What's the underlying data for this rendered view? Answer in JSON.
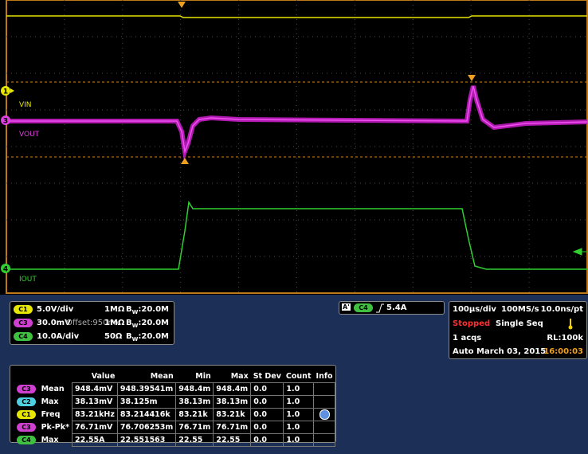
{
  "waveforms": {
    "vin": {
      "marker": "1",
      "label": "VIN"
    },
    "vout": {
      "marker": "3",
      "label": "VOUT"
    },
    "iout": {
      "marker": "4",
      "label": "IOUT"
    }
  },
  "bandwidth_symbol": {
    "main": "B",
    "sub": "W"
  },
  "channels": [
    {
      "badge": "C1",
      "scale": "5.0V/div",
      "offset": null,
      "impedance": "1MΩ",
      "bandwidth": ":20.0M"
    },
    {
      "badge": "C3",
      "scale": "30.0mV",
      "offset": "Offset:950mV",
      "impedance": "1MΩ",
      "bandwidth": ":20.0M"
    },
    {
      "badge": "C4",
      "scale": "10.0A/div",
      "offset": null,
      "impedance": "50Ω",
      "bandwidth": ":20.0M"
    }
  ],
  "trigger": {
    "ref": "A'",
    "channel": "C4",
    "level": "5.4A"
  },
  "timebase": {
    "scale": "100µs/div",
    "sample_rate": "100MS/s",
    "resolution": "10.0ns/pt",
    "status": "Stopped",
    "mode": "Single Seq",
    "acqs": "1 acqs",
    "record_length": "RL:100k",
    "trigger_mode": "Auto",
    "date": "March 03, 2015",
    "time": "16:00:03"
  },
  "measurements": {
    "headers": [
      "Value",
      "Mean",
      "Min",
      "Max",
      "St Dev",
      "Count",
      "Info"
    ],
    "rows": [
      [
        "C3",
        "Mean",
        "948.4mV",
        "948.39541m",
        "948.4m",
        "948.4m",
        "0.0",
        "1.0"
      ],
      [
        "C2",
        "Max",
        "38.13mV",
        "38.125m",
        "38.13m",
        "38.13m",
        "0.0",
        "1.0"
      ],
      [
        "C1",
        "Freq",
        "83.21kHz",
        "83.214416k",
        "83.21k",
        "83.21k",
        "0.0",
        "1.0"
      ],
      [
        "C3",
        "Pk-Pk*",
        "76.71mV",
        "76.706253m",
        "76.71m",
        "76.71m",
        "0.0",
        "1.0"
      ],
      [
        "C4",
        "Max",
        "22.55A",
        "22.551563",
        "22.55",
        "22.55",
        "0.0",
        "1.0"
      ]
    ]
  }
}
